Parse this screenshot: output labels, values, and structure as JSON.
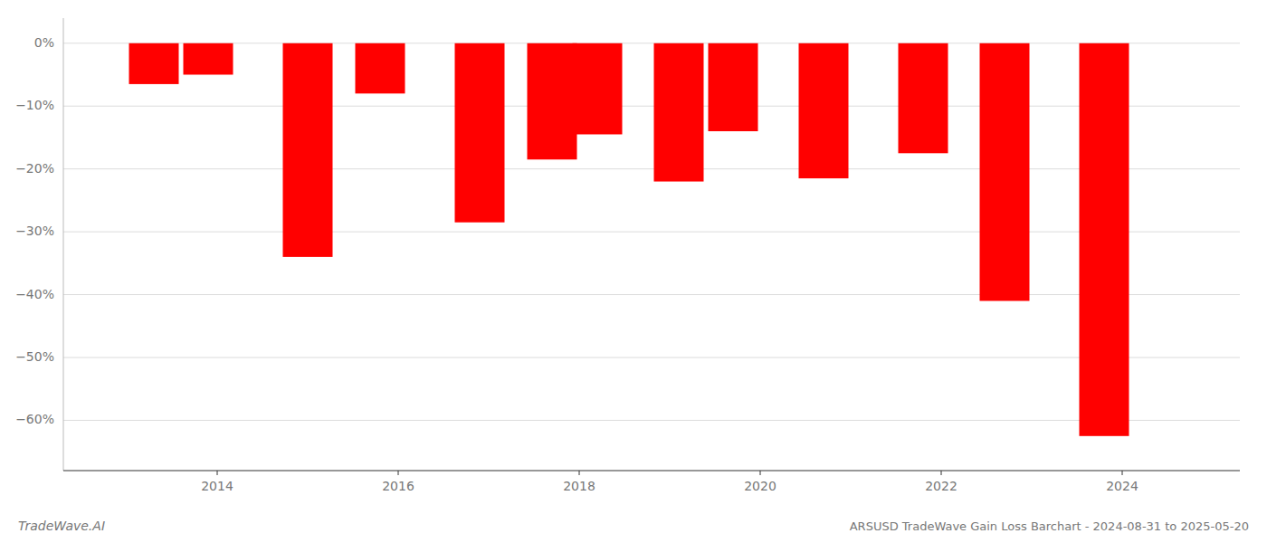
{
  "chart_data": {
    "type": "bar",
    "title": "ARSUSD TradeWave Gain Loss Barchart - 2024-08-31 to 2025-05-20",
    "annotations": [
      "TradeWave.AI"
    ],
    "x": [
      2013.3,
      2013.9,
      2015.0,
      2015.8,
      2016.9,
      2017.7,
      2018.2,
      2019.1,
      2019.7,
      2020.7,
      2021.8,
      2022.7,
      2023.8
    ],
    "values": [
      -6.5,
      -5.0,
      -34.0,
      -8.0,
      -28.5,
      -18.5,
      -14.5,
      -22.0,
      -14.0,
      -21.5,
      -17.5,
      -41.0,
      -62.5
    ],
    "color": "#ff0000",
    "xlim": [
      2012.3,
      2025.3
    ],
    "xticks": [
      2014,
      2016,
      2018,
      2020,
      2022,
      2024
    ],
    "ylim": [
      -68,
      4
    ],
    "yticks": [
      {
        "value": 0,
        "label": "0%"
      },
      {
        "value": -10,
        "label": "−10%"
      },
      {
        "value": -20,
        "label": "−20%"
      },
      {
        "value": -30,
        "label": "−30%"
      },
      {
        "value": -40,
        "label": "−40%"
      },
      {
        "value": -50,
        "label": "−50%"
      },
      {
        "value": -60,
        "label": "−60%"
      }
    ],
    "grid": true
  }
}
